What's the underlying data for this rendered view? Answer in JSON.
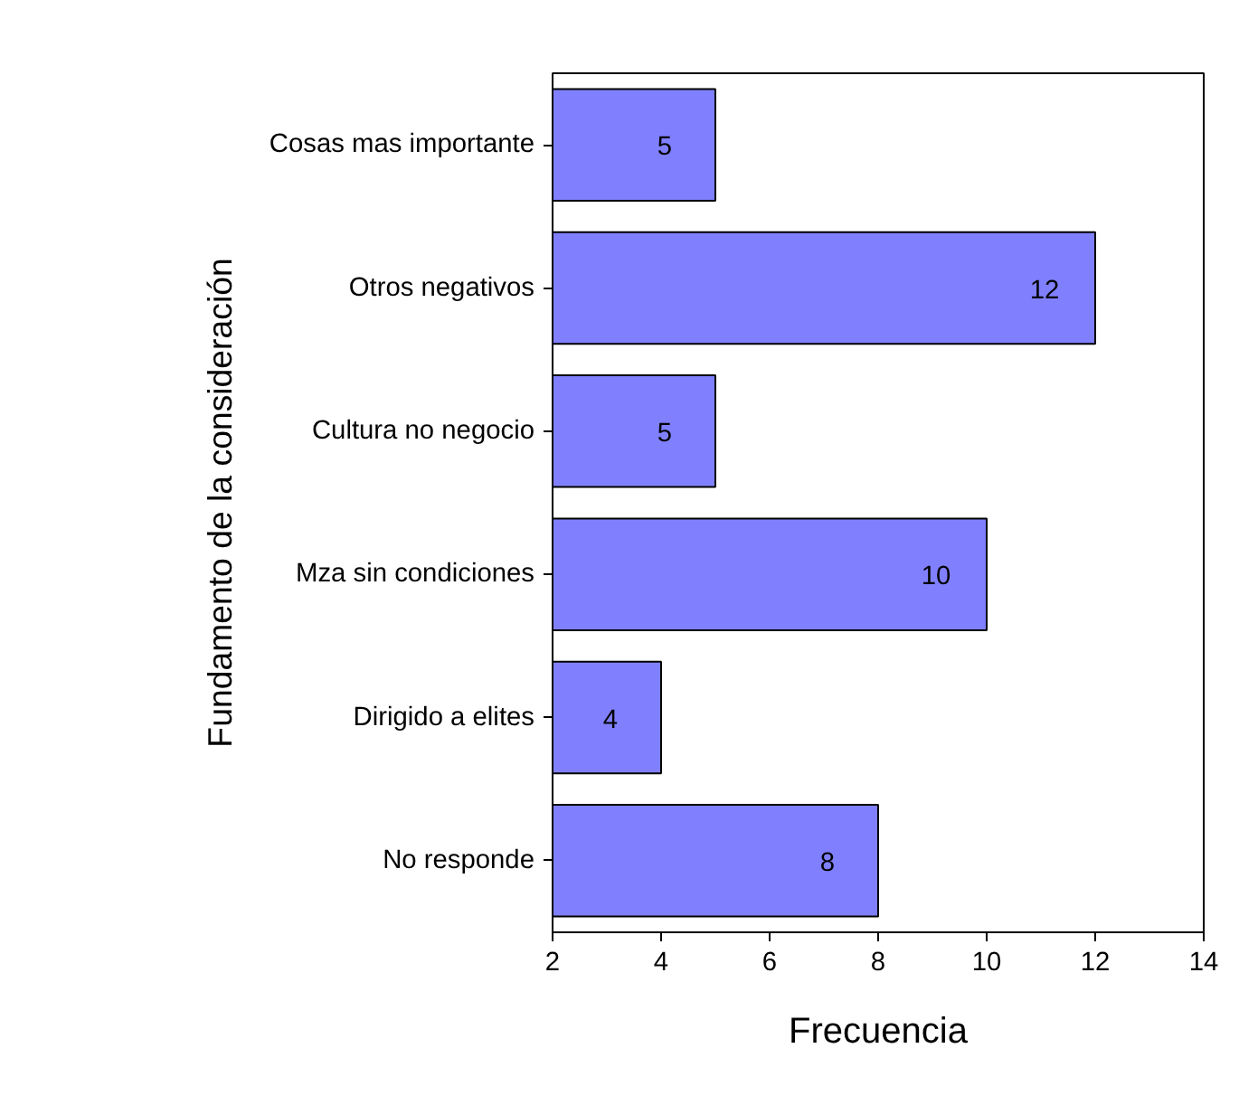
{
  "chart_data": {
    "type": "bar",
    "orientation": "horizontal",
    "categories": [
      "Cosas mas importante",
      "Otros negativos",
      "Cultura no negocio",
      "Mza sin condiciones",
      "Dirigido a elites",
      "No responde"
    ],
    "values": [
      5,
      12,
      5,
      10,
      4,
      8
    ],
    "color": "#8080ff",
    "xlim": [
      2,
      14
    ],
    "xticks": [
      2,
      4,
      6,
      8,
      10,
      12,
      14
    ],
    "xlabel": "Frecuencia",
    "ylabel": "Fundamento de la consideración",
    "data_labels": true,
    "grid": false
  }
}
